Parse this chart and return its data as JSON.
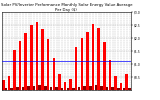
{
  "title": "Solar PV/Inverter Performance Monthly Solar Energy Value Average Per Day ($)",
  "bar_values": [
    0.38,
    0.06,
    0.55,
    0.07,
    1.55,
    0.1,
    1.9,
    0.12,
    2.2,
    0.14,
    2.5,
    0.16,
    2.6,
    0.18,
    2.35,
    0.15,
    1.95,
    0.13,
    1.25,
    0.1,
    0.6,
    0.08,
    0.32,
    0.06,
    0.42,
    0.07,
    1.65,
    0.11,
    2.0,
    0.14,
    2.25,
    0.16,
    2.55,
    0.18,
    2.4,
    0.16,
    1.85,
    0.13,
    1.15,
    0.1,
    0.52,
    0.08,
    0.28,
    0.06,
    0.6,
    0.07
  ],
  "bar_color": "#ff0000",
  "bar_color_dark": "#880000",
  "avg_line_y": 1.1,
  "avg_line_color": "#0000ff",
  "ylim": [
    0,
    3.0
  ],
  "ytick_vals": [
    0.5,
    1.0,
    1.5,
    2.0,
    2.5,
    3.0
  ],
  "ytick_labels": [
    "$0.5",
    "$1.0",
    "$1.5",
    "$2.0",
    "$2.5",
    "$3.0"
  ],
  "background_color": "#ffffff",
  "grid_color": "#aaaaaa",
  "title_fontsize": 2.8,
  "tick_fontsize": 2.2
}
